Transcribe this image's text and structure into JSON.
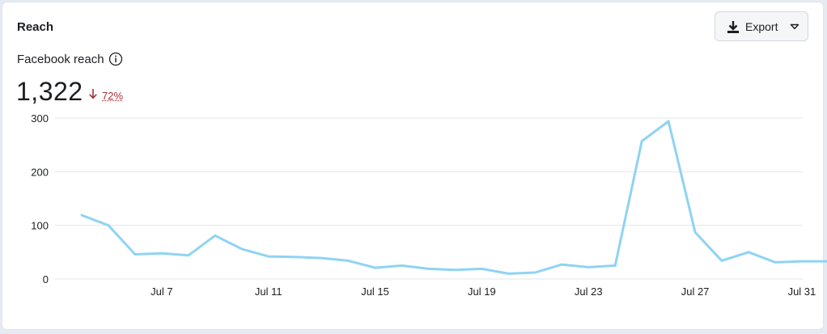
{
  "panel": {
    "title": "Reach",
    "export_label": "Export",
    "metric_label": "Facebook reach",
    "metric_value": "1,322",
    "delta": "72%",
    "delta_color": "#a4303b"
  },
  "icons": {
    "export": "download-icon",
    "dropdown": "chevron-down-icon",
    "info": "info-icon",
    "delta": "arrow-down-icon"
  },
  "chart_data": {
    "type": "line",
    "title": "",
    "xlabel": "",
    "ylabel": "",
    "ylim": [
      0,
      300
    ],
    "y_ticks": [
      0,
      100,
      200,
      300
    ],
    "x_tick_labels": [
      "Jul 7",
      "Jul 11",
      "Jul 15",
      "Jul 19",
      "Jul 23",
      "Jul 27",
      "Jul 31"
    ],
    "x_tick_dates": [
      "Jul 7",
      "Jul 11",
      "Jul 15",
      "Jul 19",
      "Jul 23",
      "Jul 27",
      "Jul 31"
    ],
    "grid": true,
    "line_color": "#8fd3f4",
    "series": [
      {
        "x": [
          "Jul 4",
          "Jul 5",
          "Jul 6",
          "Jul 7",
          "Jul 8",
          "Jul 9",
          "Jul 10",
          "Jul 11",
          "Jul 12",
          "Jul 13",
          "Jul 14",
          "Jul 15",
          "Jul 16",
          "Jul 17",
          "Jul 18",
          "Jul 19",
          "Jul 20",
          "Jul 21",
          "Jul 22",
          "Jul 23",
          "Jul 24",
          "Jul 25",
          "Jul 26",
          "Jul 27",
          "Jul 28",
          "Jul 29",
          "Jul 30",
          "Jul 31",
          "Aug 1"
        ],
        "values": [
          119,
          100,
          46,
          48,
          44,
          81,
          56,
          42,
          41,
          39,
          34,
          21,
          25,
          19,
          17,
          19,
          10,
          12,
          27,
          22,
          25,
          257,
          294,
          87,
          34,
          50,
          31,
          33,
          33
        ]
      }
    ]
  }
}
